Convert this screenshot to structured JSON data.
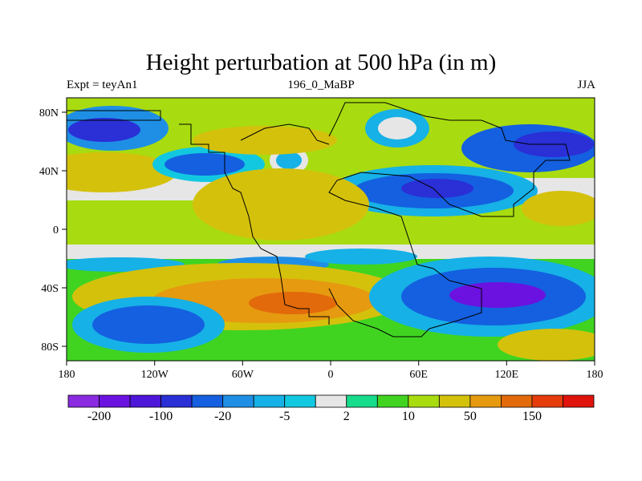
{
  "title": "Height perturbation at 500 hPa (in m)",
  "subtitle_left": "Expt = teyAn1",
  "subtitle_center": "196_0_MaBP",
  "subtitle_right": "JJA",
  "map": {
    "lon_ticks": [
      "180",
      "120W",
      "60W",
      "0",
      "60E",
      "120E",
      "180"
    ],
    "lat_ticks": [
      "80N",
      "40N",
      "0",
      "40S",
      "80S"
    ]
  },
  "colorbar": {
    "colors": [
      "#8a2be2",
      "#6b12e0",
      "#4d16d8",
      "#2a2fd6",
      "#1460e0",
      "#1f8fe5",
      "#16b1e6",
      "#12c8e0",
      "#e6e6e6",
      "#16dc8c",
      "#40d421",
      "#a8dc10",
      "#d4c10c",
      "#e69a10",
      "#e26a0a",
      "#e63c0c",
      "#e0140c"
    ],
    "labels": [
      "-200",
      "-100",
      "-20",
      "-5",
      "2",
      "10",
      "50",
      "150"
    ]
  }
}
